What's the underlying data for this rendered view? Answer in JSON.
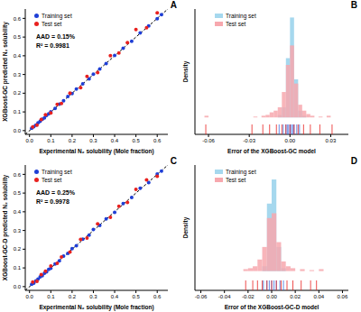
{
  "chart_data": [
    {
      "type": "scatter",
      "title": "A",
      "x_label": "Experimental N₂ solubility (Mole fraction)",
      "y_label": "XGBoost-GC predicted N₂ solubility",
      "annotations": [
        "AAD = 0.15%",
        "R² = 0.9981"
      ],
      "xlim": [
        -0.02,
        0.65
      ],
      "ylim": [
        -0.02,
        0.65
      ],
      "xticks": [
        {
          "value": 0,
          "label": "0.0"
        },
        {
          "value": 0.1,
          "label": "0.1"
        },
        {
          "value": 0.2,
          "label": "0.2"
        },
        {
          "value": 0.3,
          "label": "0.3"
        },
        {
          "value": 0.4,
          "label": "0.4"
        },
        {
          "value": 0.5,
          "label": "0.5"
        },
        {
          "value": 0.6,
          "label": "0.6"
        }
      ],
      "yticks": [
        {
          "value": 0,
          "label": "0.0"
        },
        {
          "value": 0.1,
          "label": "0.1"
        },
        {
          "value": 0.2,
          "label": "0.2"
        },
        {
          "value": 0.3,
          "label": "0.3"
        },
        {
          "value": 0.4,
          "label": "0.4"
        },
        {
          "value": 0.5,
          "label": "0.5"
        },
        {
          "value": 0.6,
          "label": "0.6"
        }
      ],
      "grid": false,
      "legend": "upper left",
      "marker": "circle",
      "series": [
        {
          "name": "Training set",
          "color": "#1f3fd6",
          "x": [
            0.01,
            0.02,
            0.03,
            0.04,
            0.05,
            0.06,
            0.07,
            0.08,
            0.09,
            0.1,
            0.12,
            0.14,
            0.16,
            0.18,
            0.2,
            0.22,
            0.25,
            0.28,
            0.3,
            0.33,
            0.36,
            0.4,
            0.44,
            0.48,
            0.52,
            0.56,
            0.6,
            0.62
          ],
          "values": [
            0.012,
            0.021,
            0.029,
            0.042,
            0.05,
            0.061,
            0.068,
            0.081,
            0.09,
            0.101,
            0.118,
            0.142,
            0.16,
            0.182,
            0.198,
            0.222,
            0.25,
            0.277,
            0.302,
            0.33,
            0.358,
            0.402,
            0.44,
            0.478,
            0.522,
            0.56,
            0.598,
            0.62
          ]
        },
        {
          "name": "Test set",
          "color": "#e8211f",
          "x": [
            0.015,
            0.035,
            0.055,
            0.075,
            0.1,
            0.13,
            0.15,
            0.19,
            0.24,
            0.27,
            0.32,
            0.38,
            0.42,
            0.46,
            0.5,
            0.55,
            0.6
          ],
          "values": [
            0.02,
            0.03,
            0.06,
            0.085,
            0.095,
            0.14,
            0.145,
            0.2,
            0.23,
            0.29,
            0.31,
            0.4,
            0.415,
            0.47,
            0.54,
            0.55,
            0.63
          ]
        }
      ]
    },
    {
      "type": "histogram",
      "title": "B",
      "x_label": "Error of the XGBoost-GC model",
      "y_label": "Density",
      "xlim": [
        -0.07,
        0.043
      ],
      "ylim": [
        -20,
        128
      ],
      "xticks": [
        -0.06,
        -0.03,
        {
          "value": 0,
          "label": "0.00"
        },
        0.03
      ],
      "yticks": [
        0
      ],
      "grid": true,
      "tick_labels": "x",
      "legend": "upper left",
      "marker": "square",
      "bins": [
        -0.066,
        -0.063,
        -0.06,
        -0.057,
        -0.054,
        -0.051,
        -0.048,
        -0.045,
        -0.042,
        -0.039,
        -0.036,
        -0.033,
        -0.03,
        -0.027,
        -0.024,
        -0.021,
        -0.018,
        -0.015,
        -0.012,
        -0.009,
        -0.006,
        -0.003,
        0,
        0.003,
        0.006,
        0.009,
        0.012,
        0.015,
        0.018,
        0.021,
        0.024,
        0.027,
        0.03,
        0.033
      ],
      "series": [
        {
          "name": "Training set",
          "color": "#a6d8ee",
          "rug_color": "#3b6fe0",
          "values": [
            0,
            0,
            0,
            0,
            0,
            0,
            0,
            0,
            0,
            0,
            0,
            0,
            0,
            0,
            0,
            0,
            0,
            0,
            0,
            3,
            12,
            70,
            118,
            45,
            8,
            2,
            0,
            0,
            0,
            0,
            0,
            0,
            0
          ],
          "rug": [
            -0.008,
            -0.005,
            -0.003,
            -0.002,
            -0.001,
            0,
            0.001,
            0.002,
            0.003,
            0.005,
            0.007
          ]
        },
        {
          "name": "Test set",
          "color": "#f7a8ae",
          "rug_color": "#e8211f",
          "values": [
            0,
            2,
            0,
            0,
            0,
            0,
            0,
            0,
            0,
            0,
            0,
            0,
            0,
            1,
            0,
            2,
            3,
            6,
            8,
            12,
            30,
            62,
            85,
            40,
            15,
            8,
            4,
            2,
            0,
            1,
            0,
            2,
            0
          ],
          "rug": [
            -0.062,
            -0.028,
            -0.02,
            -0.015,
            -0.01,
            -0.006,
            -0.003,
            0,
            0.003,
            0.006,
            0.01,
            0.015,
            0.022,
            0.031
          ]
        }
      ]
    },
    {
      "type": "scatter",
      "title": "C",
      "x_label": "Experimental N₂ solubility (Mole fraction)",
      "y_label": "XGBoost-GC-D predicted N₂ solubility",
      "annotations": [
        "AAD = 0.25%",
        "R² = 0.9978"
      ],
      "xlim": [
        -0.02,
        0.65
      ],
      "ylim": [
        -0.02,
        0.65
      ],
      "xticks": [
        {
          "value": 0,
          "label": "0.0"
        },
        {
          "value": 0.1,
          "label": "0.1"
        },
        {
          "value": 0.2,
          "label": "0.2"
        },
        {
          "value": 0.3,
          "label": "0.3"
        },
        {
          "value": 0.4,
          "label": "0.4"
        },
        {
          "value": 0.5,
          "label": "0.5"
        },
        {
          "value": 0.6,
          "label": "0.6"
        }
      ],
      "yticks": [
        {
          "value": 0,
          "label": "0.0"
        },
        {
          "value": 0.1,
          "label": "0.1"
        },
        {
          "value": 0.2,
          "label": "0.2"
        },
        {
          "value": 0.3,
          "label": "0.3"
        },
        {
          "value": 0.4,
          "label": "0.4"
        },
        {
          "value": 0.5,
          "label": "0.5"
        },
        {
          "value": 0.6,
          "label": "0.6"
        }
      ],
      "grid": false,
      "legend": "upper left",
      "marker": "circle",
      "series": [
        {
          "name": "Training set",
          "color": "#1f3fd6",
          "x": [
            0.01,
            0.02,
            0.03,
            0.04,
            0.05,
            0.06,
            0.07,
            0.08,
            0.09,
            0.1,
            0.12,
            0.14,
            0.16,
            0.18,
            0.2,
            0.22,
            0.25,
            0.28,
            0.3,
            0.33,
            0.36,
            0.4,
            0.44,
            0.48,
            0.52,
            0.56,
            0.6,
            0.62
          ],
          "values": [
            0.013,
            0.019,
            0.031,
            0.04,
            0.052,
            0.058,
            0.071,
            0.079,
            0.092,
            0.098,
            0.121,
            0.138,
            0.163,
            0.178,
            0.203,
            0.218,
            0.254,
            0.275,
            0.305,
            0.327,
            0.362,
            0.397,
            0.444,
            0.476,
            0.526,
            0.556,
            0.602,
            0.617
          ]
        },
        {
          "name": "Test set",
          "color": "#e8211f",
          "x": [
            0.015,
            0.035,
            0.055,
            0.075,
            0.1,
            0.13,
            0.15,
            0.19,
            0.24,
            0.27,
            0.32,
            0.38,
            0.42,
            0.46,
            0.5,
            0.55,
            0.6
          ],
          "values": [
            0.024,
            0.028,
            0.064,
            0.082,
            0.11,
            0.125,
            0.158,
            0.185,
            0.252,
            0.26,
            0.335,
            0.37,
            0.43,
            0.45,
            0.52,
            0.57,
            0.59
          ]
        }
      ]
    },
    {
      "type": "histogram",
      "title": "D",
      "x_label": "Error of the XGBoost-GC-D model",
      "y_label": "Density",
      "xlim": [
        -0.065,
        0.065
      ],
      "ylim": [
        -20,
        110
      ],
      "xticks": [
        -0.06,
        -0.04,
        -0.02,
        {
          "value": 0,
          "label": "0.00"
        },
        0.02,
        0.04,
        0.06
      ],
      "yticks": [
        0
      ],
      "grid": true,
      "tick_labels": "x",
      "legend": "upper left",
      "marker": "square",
      "bins": [
        -0.064,
        -0.06,
        -0.056,
        -0.052,
        -0.048,
        -0.044,
        -0.04,
        -0.036,
        -0.032,
        -0.028,
        -0.024,
        -0.02,
        -0.016,
        -0.012,
        -0.008,
        -0.004,
        0,
        0.004,
        0.008,
        0.012,
        0.016,
        0.02,
        0.024,
        0.028,
        0.032,
        0.036,
        0.04,
        0.044
      ],
      "series": [
        {
          "name": "Training set",
          "color": "#a6d8ee",
          "rug_color": "#3b6fe0",
          "values": [
            0,
            0,
            0,
            0,
            0,
            0,
            0,
            0,
            0,
            0,
            0,
            0,
            0,
            0,
            5,
            70,
            95,
            25,
            3,
            0,
            0,
            0,
            0,
            0,
            0,
            0,
            0
          ],
          "rug": [
            -0.007,
            -0.004,
            -0.002,
            0,
            0.002,
            0.004,
            0.007,
            0.01
          ]
        },
        {
          "name": "Test set",
          "color": "#f7a8ae",
          "rug_color": "#e8211f",
          "values": [
            0,
            0,
            0,
            0,
            0,
            0,
            0,
            0,
            0,
            0,
            2,
            3,
            5,
            12,
            25,
            55,
            60,
            30,
            10,
            5,
            3,
            0,
            2,
            0,
            1,
            0,
            2
          ],
          "rug": [
            -0.022,
            -0.016,
            -0.012,
            -0.008,
            -0.004,
            0,
            0.004,
            0.008,
            0.013,
            0.018,
            0.025,
            0.033,
            0.038
          ]
        }
      ]
    }
  ]
}
